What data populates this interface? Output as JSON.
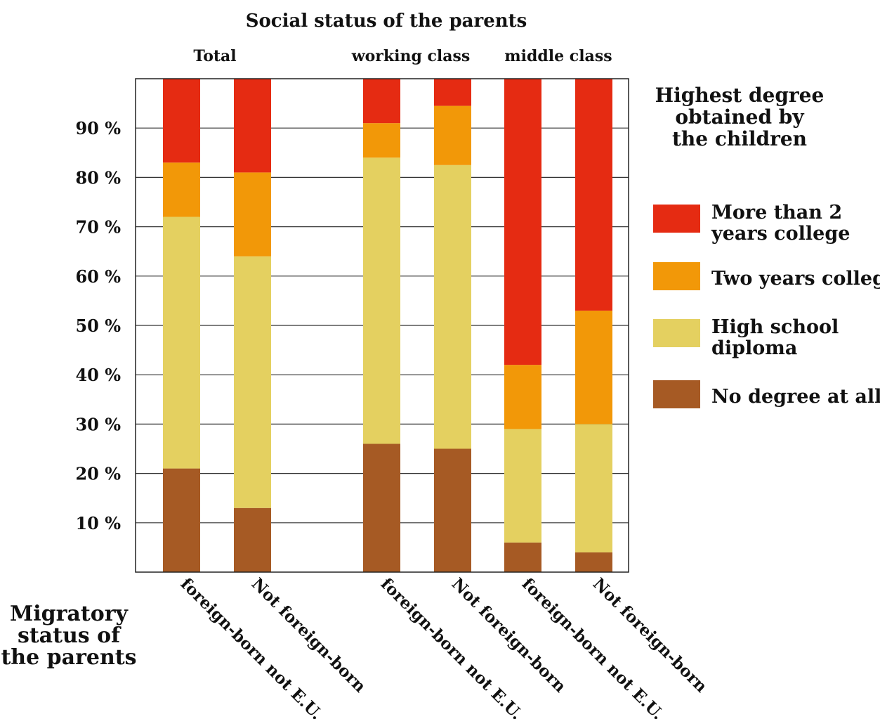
{
  "chart_data": {
    "type": "bar",
    "stacked": true,
    "title": "Social status of the parents",
    "group_labels": [
      "Total",
      "working class",
      "middle class"
    ],
    "categories": [
      "foreign-born not E.U.",
      "Not foreign-born",
      "foreign-born not E.U.",
      "Not foreign-born",
      "foreign-born not E.U.",
      "Not foreign-born"
    ],
    "category_groups": [
      0,
      0,
      1,
      1,
      2,
      2
    ],
    "xlabel": "Migratory status of the parents",
    "ylim": [
      0,
      100
    ],
    "yticks": [
      10,
      20,
      30,
      40,
      50,
      60,
      70,
      80,
      90
    ],
    "ytick_labels": [
      "10 %",
      "20 %",
      "30 %",
      "40 %",
      "50 %",
      "60 %",
      "70 %",
      "80 %",
      "90 %"
    ],
    "grid": true,
    "legend_title": "Highest degree obtained by the children",
    "legend_position": "right",
    "series": [
      {
        "name": "No degree at all",
        "color": "#a65a24",
        "values": [
          21,
          13,
          26,
          25,
          6,
          4
        ]
      },
      {
        "name": "High school diploma",
        "color": "#e4d060",
        "values": [
          51,
          51,
          58,
          57.5,
          23,
          26
        ]
      },
      {
        "name": "Two years college",
        "color": "#f29808",
        "values": [
          11,
          17,
          7,
          12,
          13,
          23
        ]
      },
      {
        "name": "More than 2 years college",
        "color": "#e52b12",
        "values": [
          17,
          19,
          9,
          5.5,
          58,
          47
        ]
      }
    ]
  },
  "legend": {
    "title_lines": [
      "Highest degree",
      "obtained by",
      "the children"
    ],
    "items": [
      {
        "lines": [
          "More than 2",
          "years college"
        ],
        "color": "#e52b12"
      },
      {
        "lines": [
          "Two years college"
        ],
        "color": "#f29808"
      },
      {
        "lines": [
          "High school",
          "diploma"
        ],
        "color": "#e4d060"
      },
      {
        "lines": [
          "No degree at all"
        ],
        "color": "#a65a24"
      }
    ]
  },
  "xlabel_lines": [
    "Migratory",
    "status of",
    "the parents"
  ]
}
